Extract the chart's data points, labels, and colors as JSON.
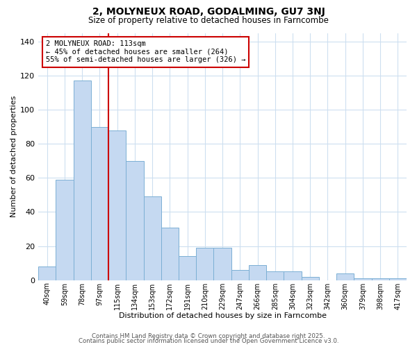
{
  "title": "2, MOLYNEUX ROAD, GODALMING, GU7 3NJ",
  "subtitle": "Size of property relative to detached houses in Farncombe",
  "xlabel": "Distribution of detached houses by size in Farncombe",
  "ylabel": "Number of detached properties",
  "bar_labels": [
    "40sqm",
    "59sqm",
    "78sqm",
    "97sqm",
    "115sqm",
    "134sqm",
    "153sqm",
    "172sqm",
    "191sqm",
    "210sqm",
    "229sqm",
    "247sqm",
    "266sqm",
    "285sqm",
    "304sqm",
    "323sqm",
    "342sqm",
    "360sqm",
    "379sqm",
    "398sqm",
    "417sqm"
  ],
  "bar_values": [
    8,
    59,
    117,
    90,
    88,
    70,
    49,
    31,
    14,
    19,
    19,
    6,
    9,
    5,
    5,
    2,
    0,
    4,
    1,
    1,
    1
  ],
  "bar_color": "#c5d9f1",
  "bar_edge_color": "#7bafd4",
  "vline_color": "#cc0000",
  "annotation_title": "2 MOLYNEUX ROAD: 113sqm",
  "annotation_line1": "← 45% of detached houses are smaller (264)",
  "annotation_line2": "55% of semi-detached houses are larger (326) →",
  "annotation_box_color": "#ffffff",
  "annotation_box_edgecolor": "#cc0000",
  "ylim": [
    0,
    145
  ],
  "yticks": [
    0,
    20,
    40,
    60,
    80,
    100,
    120,
    140
  ],
  "footer1": "Contains HM Land Registry data © Crown copyright and database right 2025.",
  "footer2": "Contains public sector information licensed under the Open Government Licence v3.0.",
  "background_color": "#ffffff",
  "grid_color": "#cddff0"
}
